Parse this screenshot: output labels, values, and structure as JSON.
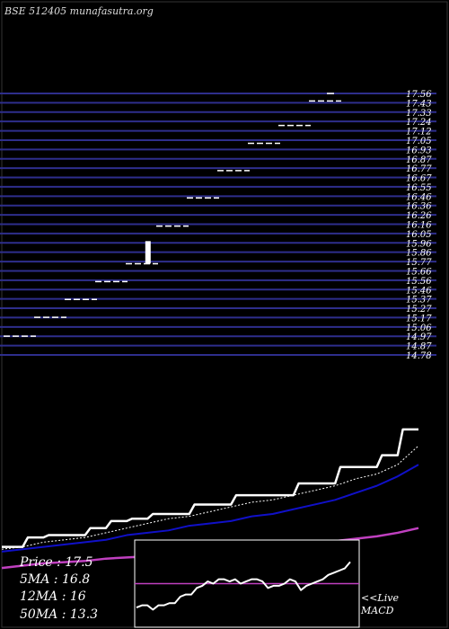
{
  "header": {
    "title": "BSE 512405 munafasutra.org"
  },
  "stats": {
    "price": "Price   : 17.5",
    "ma5": "5MA : 16.8",
    "ma12": "12MA : 16",
    "ma50": "50MA : 13.3"
  },
  "macd_label": {
    "line1": "<<Live",
    "line2": "MACD"
  },
  "colors": {
    "background": "#000000",
    "grid_line": "#2e2e8c",
    "price_level": "#ffffff",
    "ma_price": "#ffffff",
    "ma5": "#ffffff",
    "ma12": "#1010c8",
    "ma50": "#c040c0",
    "macd_line": "#ffffff",
    "macd_zero": "#c040c0"
  },
  "chart_data": [
    {
      "type": "line",
      "name": "price-levels",
      "price_labels": [
        "17.56",
        "17.43",
        "17.33",
        "17.24",
        "17.12",
        "17.05",
        "16.93",
        "16.87",
        "16.77",
        "16.67",
        "16.55",
        "16.46",
        "16.36",
        "16.26",
        "16.16",
        "16.05",
        "15.96",
        "15.86",
        "15.77",
        "15.66",
        "15.56",
        "15.46",
        "15.37",
        "15.27",
        "15.17",
        "15.06",
        "14.97",
        "14.87",
        "14.78"
      ],
      "bars": [
        {
          "x": 0,
          "price": 14.98
        },
        {
          "x": 1,
          "price": 15.18
        },
        {
          "x": 2,
          "price": 15.37
        },
        {
          "x": 3,
          "price": 15.56
        },
        {
          "x": 4,
          "price": 15.75
        },
        {
          "x": 5,
          "price": 16.15
        },
        {
          "x": 6,
          "price": 16.45
        },
        {
          "x": 7,
          "price": 16.74
        },
        {
          "x": 8,
          "price": 17.03
        },
        {
          "x": 9,
          "price": 17.22
        },
        {
          "x": 10,
          "price": 17.48
        }
      ],
      "candle": {
        "x": 4.7,
        "open": 15.75,
        "close": 15.99
      },
      "ylim": [
        14.78,
        17.56
      ]
    },
    {
      "type": "line",
      "name": "moving-averages",
      "x": [
        0,
        1,
        2,
        3,
        4,
        5,
        6,
        7,
        8,
        9,
        10,
        11,
        12,
        13,
        14,
        15,
        16,
        17,
        18,
        19,
        20
      ],
      "series": [
        {
          "key": "price",
          "values": [
            12.5,
            12.5,
            12.9,
            13.0,
            13.0,
            13.3,
            13.6,
            13.7,
            13.9,
            13.9,
            14.3,
            14.3,
            14.7,
            14.7,
            14.7,
            15.2,
            15.2,
            15.9,
            15.9,
            16.4,
            17.5
          ]
        },
        {
          "key": "ma5",
          "values": [
            12.4,
            12.5,
            12.7,
            12.8,
            12.9,
            13.1,
            13.3,
            13.5,
            13.7,
            13.8,
            14.0,
            14.2,
            14.4,
            14.5,
            14.7,
            14.9,
            15.1,
            15.4,
            15.6,
            16.0,
            16.8
          ]
        },
        {
          "key": "ma12",
          "values": [
            12.3,
            12.4,
            12.5,
            12.6,
            12.7,
            12.8,
            13.0,
            13.1,
            13.2,
            13.4,
            13.5,
            13.6,
            13.8,
            13.9,
            14.1,
            14.3,
            14.5,
            14.8,
            15.1,
            15.5,
            16.0
          ]
        },
        {
          "key": "ma50",
          "values": [
            11.6,
            11.7,
            11.8,
            11.85,
            11.9,
            12.0,
            12.05,
            12.1,
            12.15,
            12.2,
            12.3,
            12.35,
            12.4,
            12.5,
            12.55,
            12.65,
            12.75,
            12.85,
            12.95,
            13.1,
            13.3
          ]
        }
      ],
      "ylim": [
        11.3,
        17.8
      ]
    },
    {
      "type": "line",
      "name": "macd",
      "x": [
        0,
        1,
        2,
        3,
        4,
        5,
        6,
        7,
        8,
        9,
        10,
        11,
        12,
        13,
        14,
        15,
        16,
        17,
        18,
        19,
        20,
        21,
        22,
        23,
        24,
        25,
        26,
        27,
        28,
        29,
        30,
        31,
        32,
        33,
        34,
        35,
        36,
        37,
        38,
        39
      ],
      "series": [
        {
          "key": "macd",
          "values": [
            -0.55,
            -0.5,
            -0.5,
            -0.6,
            -0.5,
            -0.5,
            -0.45,
            -0.45,
            -0.3,
            -0.25,
            -0.25,
            -0.1,
            -0.05,
            0.05,
            0.0,
            0.1,
            0.1,
            0.05,
            0.1,
            0.0,
            0.05,
            0.1,
            0.1,
            0.05,
            -0.1,
            -0.05,
            -0.05,
            0.0,
            0.1,
            0.05,
            -0.15,
            -0.05,
            0.0,
            0.05,
            0.1,
            0.2,
            0.25,
            0.3,
            0.35,
            0.5
          ]
        },
        {
          "key": "zero",
          "values": [
            0,
            0,
            0,
            0,
            0,
            0,
            0,
            0,
            0,
            0,
            0,
            0,
            0,
            0,
            0,
            0,
            0,
            0,
            0,
            0,
            0,
            0,
            0,
            0,
            0,
            0,
            0,
            0,
            0,
            0,
            0,
            0,
            0,
            0,
            0,
            0,
            0,
            0,
            0,
            0
          ]
        }
      ],
      "ylim": [
        -0.9,
        0.9
      ]
    }
  ]
}
